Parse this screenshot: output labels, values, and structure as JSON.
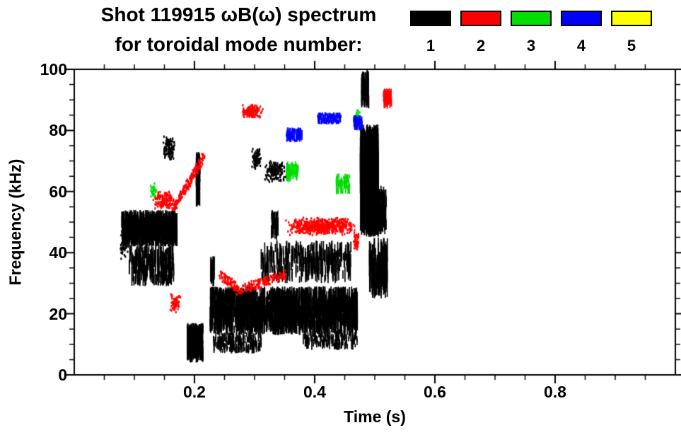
{
  "header": {
    "title": "Shot 119915 ωB(ω) spectrum",
    "subtitle": "for toroidal mode number:"
  },
  "legend": {
    "position": "top-right",
    "modes": [
      {
        "label": "1",
        "color": "#000000"
      },
      {
        "label": "2",
        "color": "#ff0000"
      },
      {
        "label": "3",
        "color": "#00dd00"
      },
      {
        "label": "4",
        "color": "#0000ff"
      },
      {
        "label": "5",
        "color": "#ffff00"
      }
    ]
  },
  "chart_data": {
    "type": "scatter",
    "title": "Shot 119915 ωB(ω) spectrum for toroidal mode number: 1 2 3 4 5",
    "xlabel": "Time (s)",
    "ylabel": "Frequency (kHz)",
    "xlim": [
      0,
      1.0
    ],
    "ylim": [
      0,
      100
    ],
    "x_major_ticks": [
      0.2,
      0.4,
      0.6,
      0.8
    ],
    "x_minor_step": 0.05,
    "y_major_ticks": [
      0,
      20,
      40,
      60,
      80,
      100
    ],
    "y_minor_step": 5,
    "grid": false,
    "legend_position": "top-right",
    "cluster_format": "[t_start_s, t_end_s, f_low_kHz, f_high_kHz, n_points, style] where style 0=dots, 1=vertical-streaks, 3=trend-line",
    "series": [
      {
        "name": "n=1",
        "color": "#000000",
        "clusters": [
          [
            0.078,
            0.17,
            42,
            54,
            800,
            1
          ],
          [
            0.09,
            0.165,
            29,
            43,
            220,
            1
          ],
          [
            0.075,
            0.09,
            38,
            48,
            60,
            0
          ],
          [
            0.146,
            0.167,
            70,
            79,
            130,
            0
          ],
          [
            0.202,
            0.208,
            55,
            73,
            80,
            1
          ],
          [
            0.187,
            0.213,
            4,
            17,
            300,
            1
          ],
          [
            0.225,
            0.232,
            29,
            39,
            40,
            1
          ],
          [
            0.225,
            0.47,
            13,
            29,
            1500,
            1
          ],
          [
            0.23,
            0.31,
            7,
            14,
            180,
            1
          ],
          [
            0.38,
            0.47,
            8,
            15,
            150,
            1
          ],
          [
            0.31,
            0.46,
            30,
            44,
            280,
            1
          ],
          [
            0.327,
            0.338,
            44,
            54,
            40,
            1
          ],
          [
            0.294,
            0.31,
            67,
            75,
            100,
            0
          ],
          [
            0.315,
            0.353,
            63,
            71,
            160,
            0
          ],
          [
            0.475,
            0.505,
            45,
            82,
            500,
            1
          ],
          [
            0.477,
            0.489,
            87,
            100,
            90,
            1
          ],
          [
            0.49,
            0.52,
            25,
            45,
            130,
            1
          ],
          [
            0.503,
            0.518,
            46,
            62,
            80,
            1
          ]
        ]
      },
      {
        "name": "n=2",
        "color": "#ff0000",
        "clusters": [
          [
            0.13,
            0.168,
            54,
            61,
            160,
            0
          ],
          [
            0.165,
            0.215,
            55,
            72,
            180,
            3
          ],
          [
            0.157,
            0.176,
            20,
            27,
            70,
            0
          ],
          [
            0.242,
            0.27,
            33,
            29,
            90,
            3
          ],
          [
            0.27,
            0.35,
            28,
            33,
            160,
            3
          ],
          [
            0.35,
            0.468,
            46,
            52,
            600,
            0
          ],
          [
            0.462,
            0.473,
            41,
            47,
            50,
            0
          ],
          [
            0.276,
            0.314,
            84,
            89,
            150,
            0
          ],
          [
            0.513,
            0.527,
            87,
            94,
            70,
            1
          ]
        ]
      },
      {
        "name": "n=3",
        "color": "#00dd00",
        "clusters": [
          [
            0.125,
            0.137,
            58,
            63,
            30,
            0
          ],
          [
            0.352,
            0.372,
            63,
            70,
            55,
            1
          ],
          [
            0.435,
            0.457,
            59,
            66,
            70,
            1
          ],
          [
            0.464,
            0.477,
            83,
            87,
            35,
            0
          ]
        ]
      },
      {
        "name": "n=4",
        "color": "#0000ff",
        "clusters": [
          [
            0.352,
            0.378,
            76,
            81,
            90,
            1
          ],
          [
            0.404,
            0.443,
            82,
            86,
            130,
            1
          ],
          [
            0.464,
            0.478,
            80,
            85,
            70,
            1
          ]
        ]
      },
      {
        "name": "n=5",
        "color": "#ffff00",
        "clusters": []
      }
    ]
  }
}
